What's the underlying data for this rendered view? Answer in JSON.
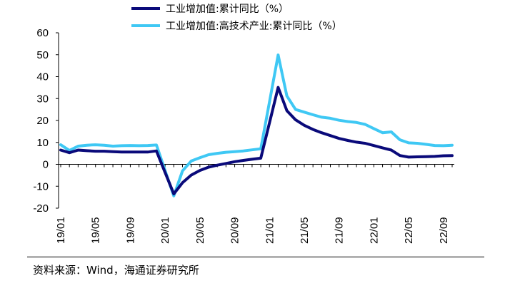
{
  "chart_data": {
    "type": "line",
    "title": "",
    "xlabel": "",
    "ylabel": "",
    "ylim": [
      -20,
      60
    ],
    "yticks": [
      -20,
      -10,
      0,
      10,
      20,
      30,
      40,
      50,
      60
    ],
    "x_tick_labels": [
      "19/01",
      "19/05",
      "19/09",
      "20/01",
      "20/05",
      "20/09",
      "21/01",
      "21/05",
      "21/09",
      "22/01",
      "22/05",
      "22/09"
    ],
    "x": [
      "19/01",
      "19/02",
      "19/03",
      "19/04",
      "19/05",
      "19/06",
      "19/07",
      "19/08",
      "19/09",
      "19/10",
      "19/11",
      "19/12",
      "20/01",
      "20/02",
      "20/03",
      "20/04",
      "20/05",
      "20/06",
      "20/07",
      "20/08",
      "20/09",
      "20/10",
      "20/11",
      "20/12",
      "21/01",
      "21/02",
      "21/03",
      "21/04",
      "21/05",
      "21/06",
      "21/07",
      "21/08",
      "21/09",
      "21/10",
      "21/11",
      "21/12",
      "22/01",
      "22/02",
      "22/03",
      "22/04",
      "22/05",
      "22/06",
      "22/07",
      "22/08",
      "22/09",
      "22/10"
    ],
    "series": [
      {
        "name": "工业增加值:累计同比（%）",
        "color": "#0a0a7a",
        "values": [
          6.5,
          5.3,
          6.5,
          6.2,
          6.0,
          6.0,
          5.8,
          5.6,
          5.6,
          5.6,
          5.6,
          6.1,
          null,
          -13.5,
          -8.4,
          -4.9,
          -2.8,
          -1.3,
          -0.4,
          0.4,
          1.2,
          1.8,
          2.3,
          2.8,
          null,
          35.1,
          24.5,
          20.3,
          17.8,
          15.9,
          14.4,
          13.1,
          11.8,
          10.9,
          10.1,
          9.6,
          null,
          7.5,
          6.5,
          4.0,
          3.3,
          3.4,
          3.5,
          3.6,
          3.9,
          4.0
        ]
      },
      {
        "name": "工业增加值:高技术产业:累计同比（%）",
        "color": "#3fc8f4",
        "values": [
          8.9,
          6.3,
          8.3,
          8.7,
          8.9,
          8.7,
          8.3,
          8.5,
          8.6,
          8.5,
          8.6,
          8.8,
          null,
          -14.4,
          -3.0,
          1.5,
          3.0,
          4.4,
          5.0,
          5.5,
          5.8,
          6.1,
          6.6,
          7.1,
          null,
          49.9,
          31.2,
          25.0,
          23.8,
          22.6,
          21.5,
          21.0,
          20.1,
          19.5,
          19.1,
          18.2,
          null,
          14.4,
          14.8,
          11.2,
          9.8,
          9.6,
          9.1,
          8.6,
          8.5,
          8.7
        ]
      }
    ],
    "legend": "top",
    "grid": false
  },
  "source_text": "资料来源：Wind，海通证券研究所"
}
